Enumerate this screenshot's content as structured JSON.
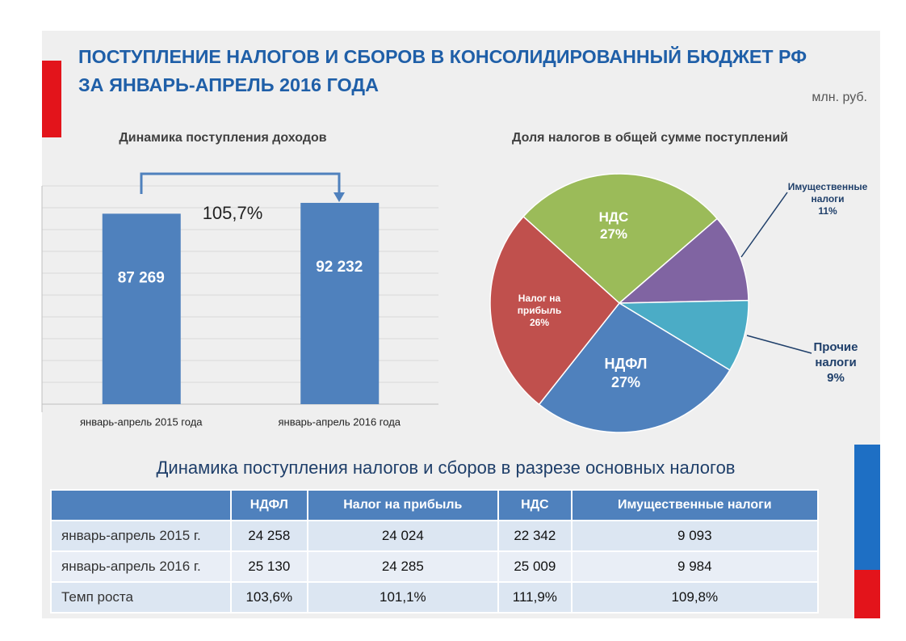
{
  "header": {
    "title_line1": "ПОСТУПЛЕНИЕ НАЛОГОВ  И СБОРОВ В КОНСОЛИДИРОВАННЫЙ БЮДЖЕТ РФ",
    "title_line2": "ЗА ЯНВАРЬ-АПРЕЛЬ  2016 ГОДА",
    "unit": "млн. руб."
  },
  "chart_data": [
    {
      "type": "bar",
      "title": "Динамика поступления доходов",
      "categories": [
        "январь-апрель 2015 года",
        "январь-апрель 2016 года"
      ],
      "values": [
        87269,
        92232
      ],
      "value_labels": [
        "87 269",
        "92 232"
      ],
      "color": "#4f81bd",
      "ylim": [
        0,
        100000
      ],
      "grid": true,
      "growth_label": "105,7%"
    },
    {
      "type": "pie",
      "title": "Доля налогов в общей сумме поступлений",
      "categories": [
        "НДС",
        "Имущественные налоги",
        "Прочие налоги",
        "НДФЛ",
        "Налог на прибыль"
      ],
      "values": [
        27,
        11,
        9,
        27,
        26
      ],
      "value_labels": [
        "27%",
        "11%",
        "9%",
        "27%",
        "26%"
      ],
      "colors": [
        "#9bbb59",
        "#8064a2",
        "#4bacc6",
        "#4f81bd",
        "#c0504d"
      ]
    }
  ],
  "table": {
    "title": "Динамика поступления налогов и сборов  в разрезе основных налогов",
    "columns": [
      "НДФЛ",
      "Налог на прибыль",
      "НДС",
      "Имущественные налоги"
    ],
    "rows": [
      {
        "label": "январь-апрель 2015 г.",
        "cells": [
          "24 258",
          "24 024",
          "22 342",
          "9 093"
        ]
      },
      {
        "label": "январь-апрель 2016 г.",
        "cells": [
          "25 130",
          "24 285",
          "25 009",
          "9 984"
        ]
      },
      {
        "label": "Темп роста",
        "cells": [
          "103,6%",
          "101,1%",
          "111,9%",
          "109,8%"
        ]
      }
    ]
  }
}
